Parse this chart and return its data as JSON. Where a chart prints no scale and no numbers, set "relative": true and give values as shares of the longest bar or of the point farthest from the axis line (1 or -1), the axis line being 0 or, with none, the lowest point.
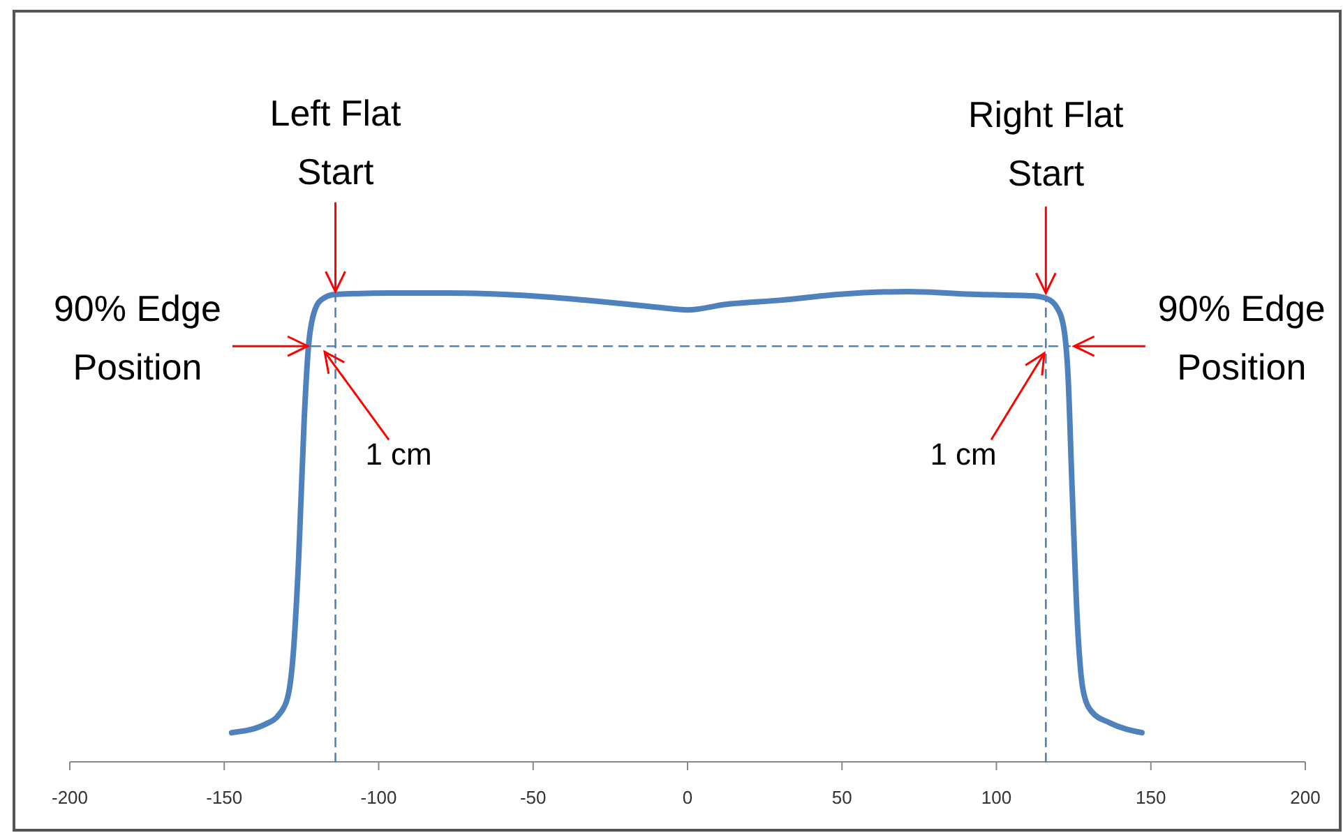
{
  "chart_data": {
    "type": "line",
    "relative": true,
    "xlim": [
      -200,
      200
    ],
    "xticks": [
      -200,
      -150,
      -100,
      -50,
      0,
      50,
      100,
      150,
      200
    ],
    "grid": false,
    "series": [
      {
        "color": "#4f81bd",
        "line_style": "solid",
        "x": [
          -147.6,
          -136.7,
          -132.2,
          -129.5,
          -127.7,
          -125.9,
          -124.1,
          -122.8,
          -121.4,
          -118.7,
          -114.1,
          -96,
          -78,
          -50.8,
          -28.2,
          -10.2,
          0,
          12.4,
          30.5,
          48.6,
          71.2,
          93.8,
          111.9,
          116.4,
          119.5,
          121.8,
          123.2,
          124.5,
          126.3,
          128.1,
          130.8,
          136.7,
          147.1
        ],
        "values": [
          0.062,
          0.08,
          0.101,
          0.136,
          0.226,
          0.433,
          0.73,
          0.878,
          0.944,
          0.982,
          0.994,
          0.997,
          0.997,
          0.991,
          0.979,
          0.967,
          0.961,
          0.973,
          0.982,
          0.994,
          1,
          0.994,
          0.991,
          0.985,
          0.967,
          0.923,
          0.819,
          0.582,
          0.285,
          0.151,
          0.107,
          0.083,
          0.062
        ]
      },
      {
        "color": "#4f81bd",
        "line_style": "dashed",
        "x": [
          -121.6,
          123.8
        ],
        "values": [
          0.884,
          0.884
        ]
      },
      {
        "color": "#4f81bd",
        "line_style": "dashed",
        "x": [
          -114,
          -114
        ],
        "values": [
          0,
          0.994
        ]
      },
      {
        "color": "#4f81bd",
        "line_style": "dashed",
        "x": [
          116,
          116
        ],
        "values": [
          0,
          0.985
        ]
      }
    ],
    "annotations": [
      {
        "text": "Left Flat Start",
        "x": -114,
        "y": 0.994
      },
      {
        "text": "Right Flat Start",
        "x": 116,
        "y": 0.985
      },
      {
        "text": "90% Edge Position",
        "x": -121.6,
        "y": 0.884
      },
      {
        "text": "90% Edge Position",
        "x": 123.8,
        "y": 0.884
      },
      {
        "text": "1 cm",
        "x": -117.5,
        "y": 0.872
      },
      {
        "text": "1 cm",
        "x": 115.5,
        "y": 0.869
      }
    ]
  }
}
